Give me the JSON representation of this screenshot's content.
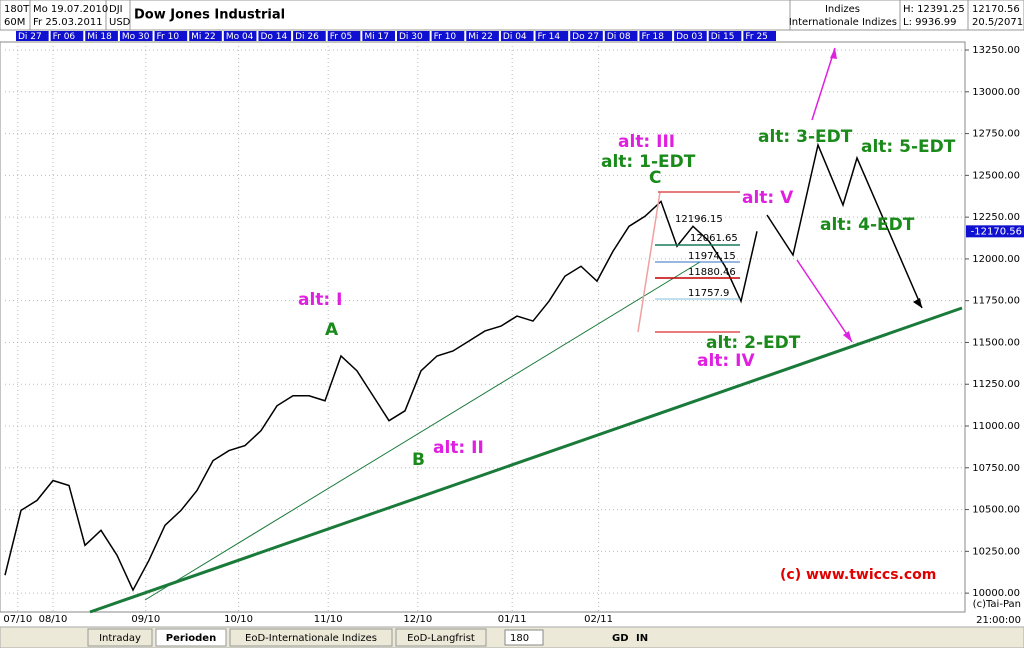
{
  "header": {
    "period": "180T",
    "interval": "60M",
    "from": "Mo 19.07.2010",
    "to": "Fr 25.03.2011",
    "symbol": "DJI",
    "currency": "USD",
    "title": "Dow Jones Industrial",
    "group": "Indizes",
    "group_name": "Internationale Indizes",
    "high": "H: 12391.25",
    "low": "L: 9936.99",
    "last": "12170.56",
    "ratio": "20.5/2071"
  },
  "date_strip": [
    "Di 27",
    "Fr 06",
    "Mi 18",
    "Mo 30",
    "Fr 10",
    "Mi 22",
    "Mo 04",
    "Do 14",
    "Di 26",
    "Fr 05",
    "Mi 17",
    "Di 30",
    "Fr 10",
    "Mi 22",
    "Di 04",
    "Fr 14",
    "Do 27",
    "Di 08",
    "Fr 18",
    "Do 03",
    "Di 15",
    "Fr 25"
  ],
  "chart_data": {
    "type": "line",
    "title": "Dow Jones Industrial",
    "series": [
      {
        "name": "DJI",
        "color": "#000000",
        "values": [
          10107,
          10495,
          10555,
          10674,
          10644,
          10286,
          10376,
          10227,
          10018,
          10197,
          10406,
          10495,
          10614,
          10793,
          10853,
          10883,
          10972,
          11121,
          11181,
          11181,
          11151,
          11419,
          11330,
          11181,
          11032,
          11091,
          11330,
          11419,
          11449,
          11509,
          11569,
          11598,
          11658,
          11628,
          11747,
          11897,
          11956,
          11867,
          12046,
          12195,
          12255,
          12344,
          12076,
          12195,
          12106,
          11956,
          11747,
          12165
        ]
      }
    ],
    "xlim": [
      0,
      60
    ],
    "xticks": [
      {
        "value": 0.8,
        "label": "07/10"
      },
      {
        "value": 3.0,
        "label": "08/10"
      },
      {
        "value": 8.8,
        "label": "09/10"
      },
      {
        "value": 14.6,
        "label": "10/10"
      },
      {
        "value": 20.2,
        "label": "11/10"
      },
      {
        "value": 25.8,
        "label": "12/10"
      },
      {
        "value": 31.7,
        "label": "01/11"
      },
      {
        "value": 37.1,
        "label": "02/11"
      }
    ],
    "ylim": [
      9887,
      13298
    ],
    "yticks": [
      {
        "value": 10000,
        "label": "10000.00"
      },
      {
        "value": 10250,
        "label": "10250.00"
      },
      {
        "value": 10500,
        "label": "10500.00"
      },
      {
        "value": 10750,
        "label": "10750.00"
      },
      {
        "value": 11000,
        "label": "11000.00"
      },
      {
        "value": 11250,
        "label": "11250.00"
      },
      {
        "value": 11500,
        "label": "11500.00"
      },
      {
        "value": 11750,
        "label": "11750.00"
      },
      {
        "value": 12000,
        "label": "12000.00"
      },
      {
        "value": 12250,
        "label": "12250.00"
      },
      {
        "value": 12500,
        "label": "12500.00"
      },
      {
        "value": 12750,
        "label": "12750.00"
      },
      {
        "value": 13000,
        "label": "13000.00"
      },
      {
        "value": 13250,
        "label": "13250.00"
      }
    ],
    "grid": true,
    "last_label": "-12170.56",
    "fib_labels": [
      "12196.15",
      "12061.65",
      "11974.15",
      "11880.46",
      "11757.9"
    ],
    "annotations": [
      {
        "text": "alt: I",
        "color": "#e020e0"
      },
      {
        "text": "A",
        "color": "#1a8a1a"
      },
      {
        "text": "alt: II",
        "color": "#e020e0"
      },
      {
        "text": "B",
        "color": "#1a8a1a"
      },
      {
        "text": "alt: III",
        "color": "#e020e0"
      },
      {
        "text": "alt: 1-EDT",
        "color": "#1a8a1a"
      },
      {
        "text": "C",
        "color": "#1a8a1a"
      },
      {
        "text": "alt: V",
        "color": "#e020e0"
      },
      {
        "text": "alt: 3-EDT",
        "color": "#1a8a1a"
      },
      {
        "text": "alt: 5-EDT",
        "color": "#1a8a1a"
      },
      {
        "text": "alt: 4-EDT",
        "color": "#1a8a1a"
      },
      {
        "text": "alt: 2-EDT",
        "color": "#1a8a1a"
      },
      {
        "text": "alt: IV",
        "color": "#e020e0"
      },
      {
        "text": "(c) www.twiccs.com",
        "color": "#e00000"
      }
    ]
  },
  "footer": {
    "copyright": "(c)Tai-Pan",
    "time": "21:00:00"
  },
  "toolbar": {
    "tabs": [
      "Intraday",
      "Perioden",
      "EoD-Internationale Indizes",
      "EoD-Langfrist"
    ],
    "period": "180",
    "gd": "GD",
    "in": "IN"
  }
}
